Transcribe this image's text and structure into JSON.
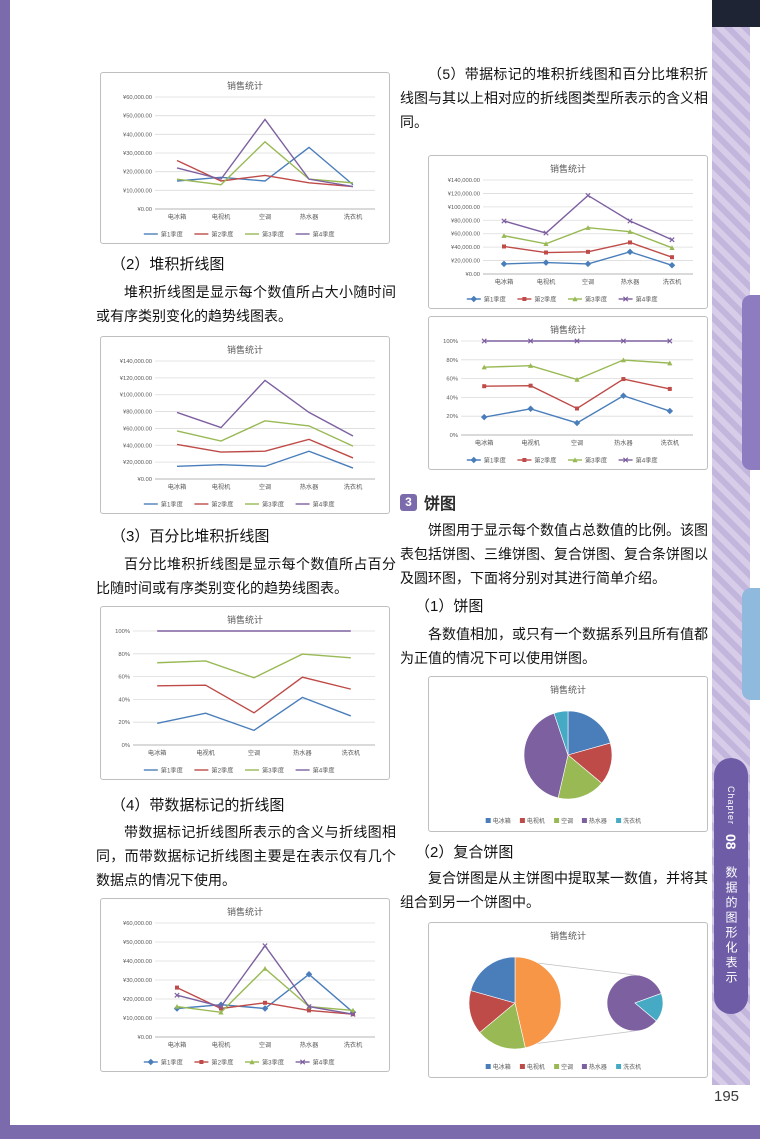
{
  "page": {
    "number": "195",
    "chapter_tab": {
      "chapter_label": "Chapter",
      "chapter_num": "08",
      "chapter_title": "数据的图形化表示"
    }
  },
  "left_column": {
    "sec2_heading": "（2）堆积折线图",
    "sec2_body": "堆积折线图是显示每个数值所占大小随时间或有序类别变化的趋势线图表。",
    "sec3_heading": "（3）百分比堆积折线图",
    "sec3_body": "百分比堆积折线图是显示每个数值所占百分比随时间或有序类别变化的趋势线图表。",
    "sec4_heading": "（4）带数据标记的折线图",
    "sec4_body": "带数据标记折线图所表示的含义与折线图相同，而带数据标记折线图主要是在表示仅有几个数据点的情况下使用。"
  },
  "right_column": {
    "sec5_body": "（5）带据标记的堆积折线图和百分比堆积折线图与其以上相对应的折线图类型所表示的含义相同。",
    "pie_section": {
      "badge": "3",
      "title": "饼图"
    },
    "pie_intro": "饼图用于显示每个数值占总数值的比例。该图表包括饼图、三维饼图、复合饼图、复合条饼图以及圆环图，下面将分别对其进行简单介绍。",
    "sub1_heading": "（1）饼图",
    "sub1_body": "各数值相加，或只有一个数据系列且所有值都为正值的情况下可以使用饼图。",
    "sub2_heading": "（2）复合饼图",
    "sub2_body": "复合饼图是从主饼图中提取某一数值，并将其组合到另一个饼图中。"
  },
  "chart_data": [
    {
      "type": "line",
      "title": "销售统计",
      "categories": [
        "电冰箱",
        "电视机",
        "空调",
        "热水器",
        "洗衣机"
      ],
      "series": [
        {
          "name": "第1季度",
          "color": "#4a7ebb",
          "values": [
            15000,
            17000,
            15000,
            33000,
            13000
          ]
        },
        {
          "name": "第2季度",
          "color": "#be4b48",
          "values": [
            26000,
            15000,
            18000,
            14000,
            12000
          ]
        },
        {
          "name": "第3季度",
          "color": "#98b954",
          "values": [
            16000,
            13000,
            36000,
            16000,
            14000
          ]
        },
        {
          "name": "第4季度",
          "color": "#7d60a0",
          "values": [
            22000,
            16000,
            48000,
            16000,
            12000
          ]
        }
      ],
      "ylim": [
        0,
        60000
      ],
      "ytick_step": 10000,
      "ytick_format": "yen",
      "markers": false,
      "stacked": false,
      "percent": false
    },
    {
      "type": "line",
      "title": "销售统计",
      "categories": [
        "电冰箱",
        "电视机",
        "空调",
        "热水器",
        "洗衣机"
      ],
      "series": [
        {
          "name": "第1季度",
          "color": "#4a7ebb",
          "values": [
            15000,
            17000,
            15000,
            33000,
            13000
          ]
        },
        {
          "name": "第2季度",
          "color": "#be4b48",
          "values": [
            26000,
            15000,
            18000,
            14000,
            12000
          ]
        },
        {
          "name": "第3季度",
          "color": "#98b954",
          "values": [
            16000,
            13000,
            36000,
            16000,
            14000
          ]
        },
        {
          "name": "第4季度",
          "color": "#7d60a0",
          "values": [
            22000,
            16000,
            48000,
            16000,
            12000
          ]
        }
      ],
      "ylim": [
        0,
        140000
      ],
      "ytick_step": 20000,
      "ytick_format": "yen",
      "markers": false,
      "stacked": true,
      "percent": false
    },
    {
      "type": "line",
      "title": "销售统计",
      "categories": [
        "电冰箱",
        "电视机",
        "空调",
        "热水器",
        "洗衣机"
      ],
      "series": [
        {
          "name": "第1季度",
          "color": "#4a7ebb",
          "values": [
            15000,
            17000,
            15000,
            33000,
            13000
          ]
        },
        {
          "name": "第2季度",
          "color": "#be4b48",
          "values": [
            26000,
            15000,
            18000,
            14000,
            12000
          ]
        },
        {
          "name": "第3季度",
          "color": "#98b954",
          "values": [
            16000,
            13000,
            36000,
            16000,
            14000
          ]
        },
        {
          "name": "第4季度",
          "color": "#7d60a0",
          "values": [
            22000,
            16000,
            48000,
            16000,
            12000
          ]
        }
      ],
      "ylim": [
        0,
        100
      ],
      "ytick_step": 20,
      "ytick_format": "percent",
      "markers": false,
      "stacked": false,
      "percent": true
    },
    {
      "type": "line",
      "title": "销售统计",
      "categories": [
        "电冰箱",
        "电视机",
        "空调",
        "热水器",
        "洗衣机"
      ],
      "series": [
        {
          "name": "第1季度",
          "color": "#4a7ebb",
          "values": [
            15000,
            17000,
            15000,
            33000,
            13000
          ]
        },
        {
          "name": "第2季度",
          "color": "#be4b48",
          "values": [
            26000,
            15000,
            18000,
            14000,
            12000
          ]
        },
        {
          "name": "第3季度",
          "color": "#98b954",
          "values": [
            16000,
            13000,
            36000,
            16000,
            14000
          ]
        },
        {
          "name": "第4季度",
          "color": "#7d60a0",
          "values": [
            22000,
            16000,
            48000,
            16000,
            12000
          ]
        }
      ],
      "ylim": [
        0,
        60000
      ],
      "ytick_step": 10000,
      "ytick_format": "yen",
      "markers": true,
      "stacked": false,
      "percent": false
    },
    {
      "type": "line",
      "title": "销售统计",
      "categories": [
        "电冰箱",
        "电视机",
        "空调",
        "热水器",
        "洗衣机"
      ],
      "series": [
        {
          "name": "第1季度",
          "color": "#4a7ebb",
          "values": [
            15000,
            17000,
            15000,
            33000,
            13000
          ]
        },
        {
          "name": "第2季度",
          "color": "#be4b48",
          "values": [
            26000,
            15000,
            18000,
            14000,
            12000
          ]
        },
        {
          "name": "第3季度",
          "color": "#98b954",
          "values": [
            16000,
            13000,
            36000,
            16000,
            14000
          ]
        },
        {
          "name": "第4季度",
          "color": "#7d60a0",
          "values": [
            22000,
            16000,
            48000,
            16000,
            12000
          ]
        }
      ],
      "ylim": [
        0,
        140000
      ],
      "ytick_step": 20000,
      "ytick_format": "yen",
      "markers": true,
      "stacked": true,
      "percent": false
    },
    {
      "type": "line",
      "title": "销售统计",
      "categories": [
        "电冰箱",
        "电视机",
        "空调",
        "热水器",
        "洗衣机"
      ],
      "series": [
        {
          "name": "第1季度",
          "color": "#4a7ebb",
          "values": [
            15000,
            17000,
            15000,
            33000,
            13000
          ]
        },
        {
          "name": "第2季度",
          "color": "#be4b48",
          "values": [
            26000,
            15000,
            18000,
            14000,
            12000
          ]
        },
        {
          "name": "第3季度",
          "color": "#98b954",
          "values": [
            16000,
            13000,
            36000,
            16000,
            14000
          ]
        },
        {
          "name": "第4季度",
          "color": "#7d60a0",
          "values": [
            22000,
            16000,
            48000,
            16000,
            12000
          ]
        }
      ],
      "ylim": [
        0,
        100
      ],
      "ytick_step": 20,
      "ytick_format": "percent",
      "markers": true,
      "stacked": false,
      "percent": true
    },
    {
      "type": "pie",
      "title": "销售统计",
      "legend": [
        "电冰箱",
        "电视机",
        "空调",
        "热水器",
        "洗衣机"
      ],
      "colors": [
        "#4a7ebb",
        "#be4b48",
        "#98b954",
        "#7d60a0",
        "#46aac5"
      ],
      "values": [
        20000,
        15000,
        17000,
        40000,
        5000
      ]
    },
    {
      "type": "pie-of-pie",
      "title": "销售统计",
      "legend": [
        "电冰箱",
        "电视机",
        "空调",
        "热水器",
        "洗衣机"
      ],
      "legend_colors": [
        "#4a7ebb",
        "#be4b48",
        "#98b954",
        "#7d60a0",
        "#46aac5"
      ],
      "main": {
        "values": [
          45000,
          17000,
          15000,
          20000
        ],
        "colors": [
          "#f79646",
          "#98b954",
          "#be4b48",
          "#4a7ebb"
        ]
      },
      "secondary": {
        "values": [
          40000,
          8000
        ],
        "colors": [
          "#7d60a0",
          "#46aac5"
        ],
        "start": 130
      }
    }
  ]
}
